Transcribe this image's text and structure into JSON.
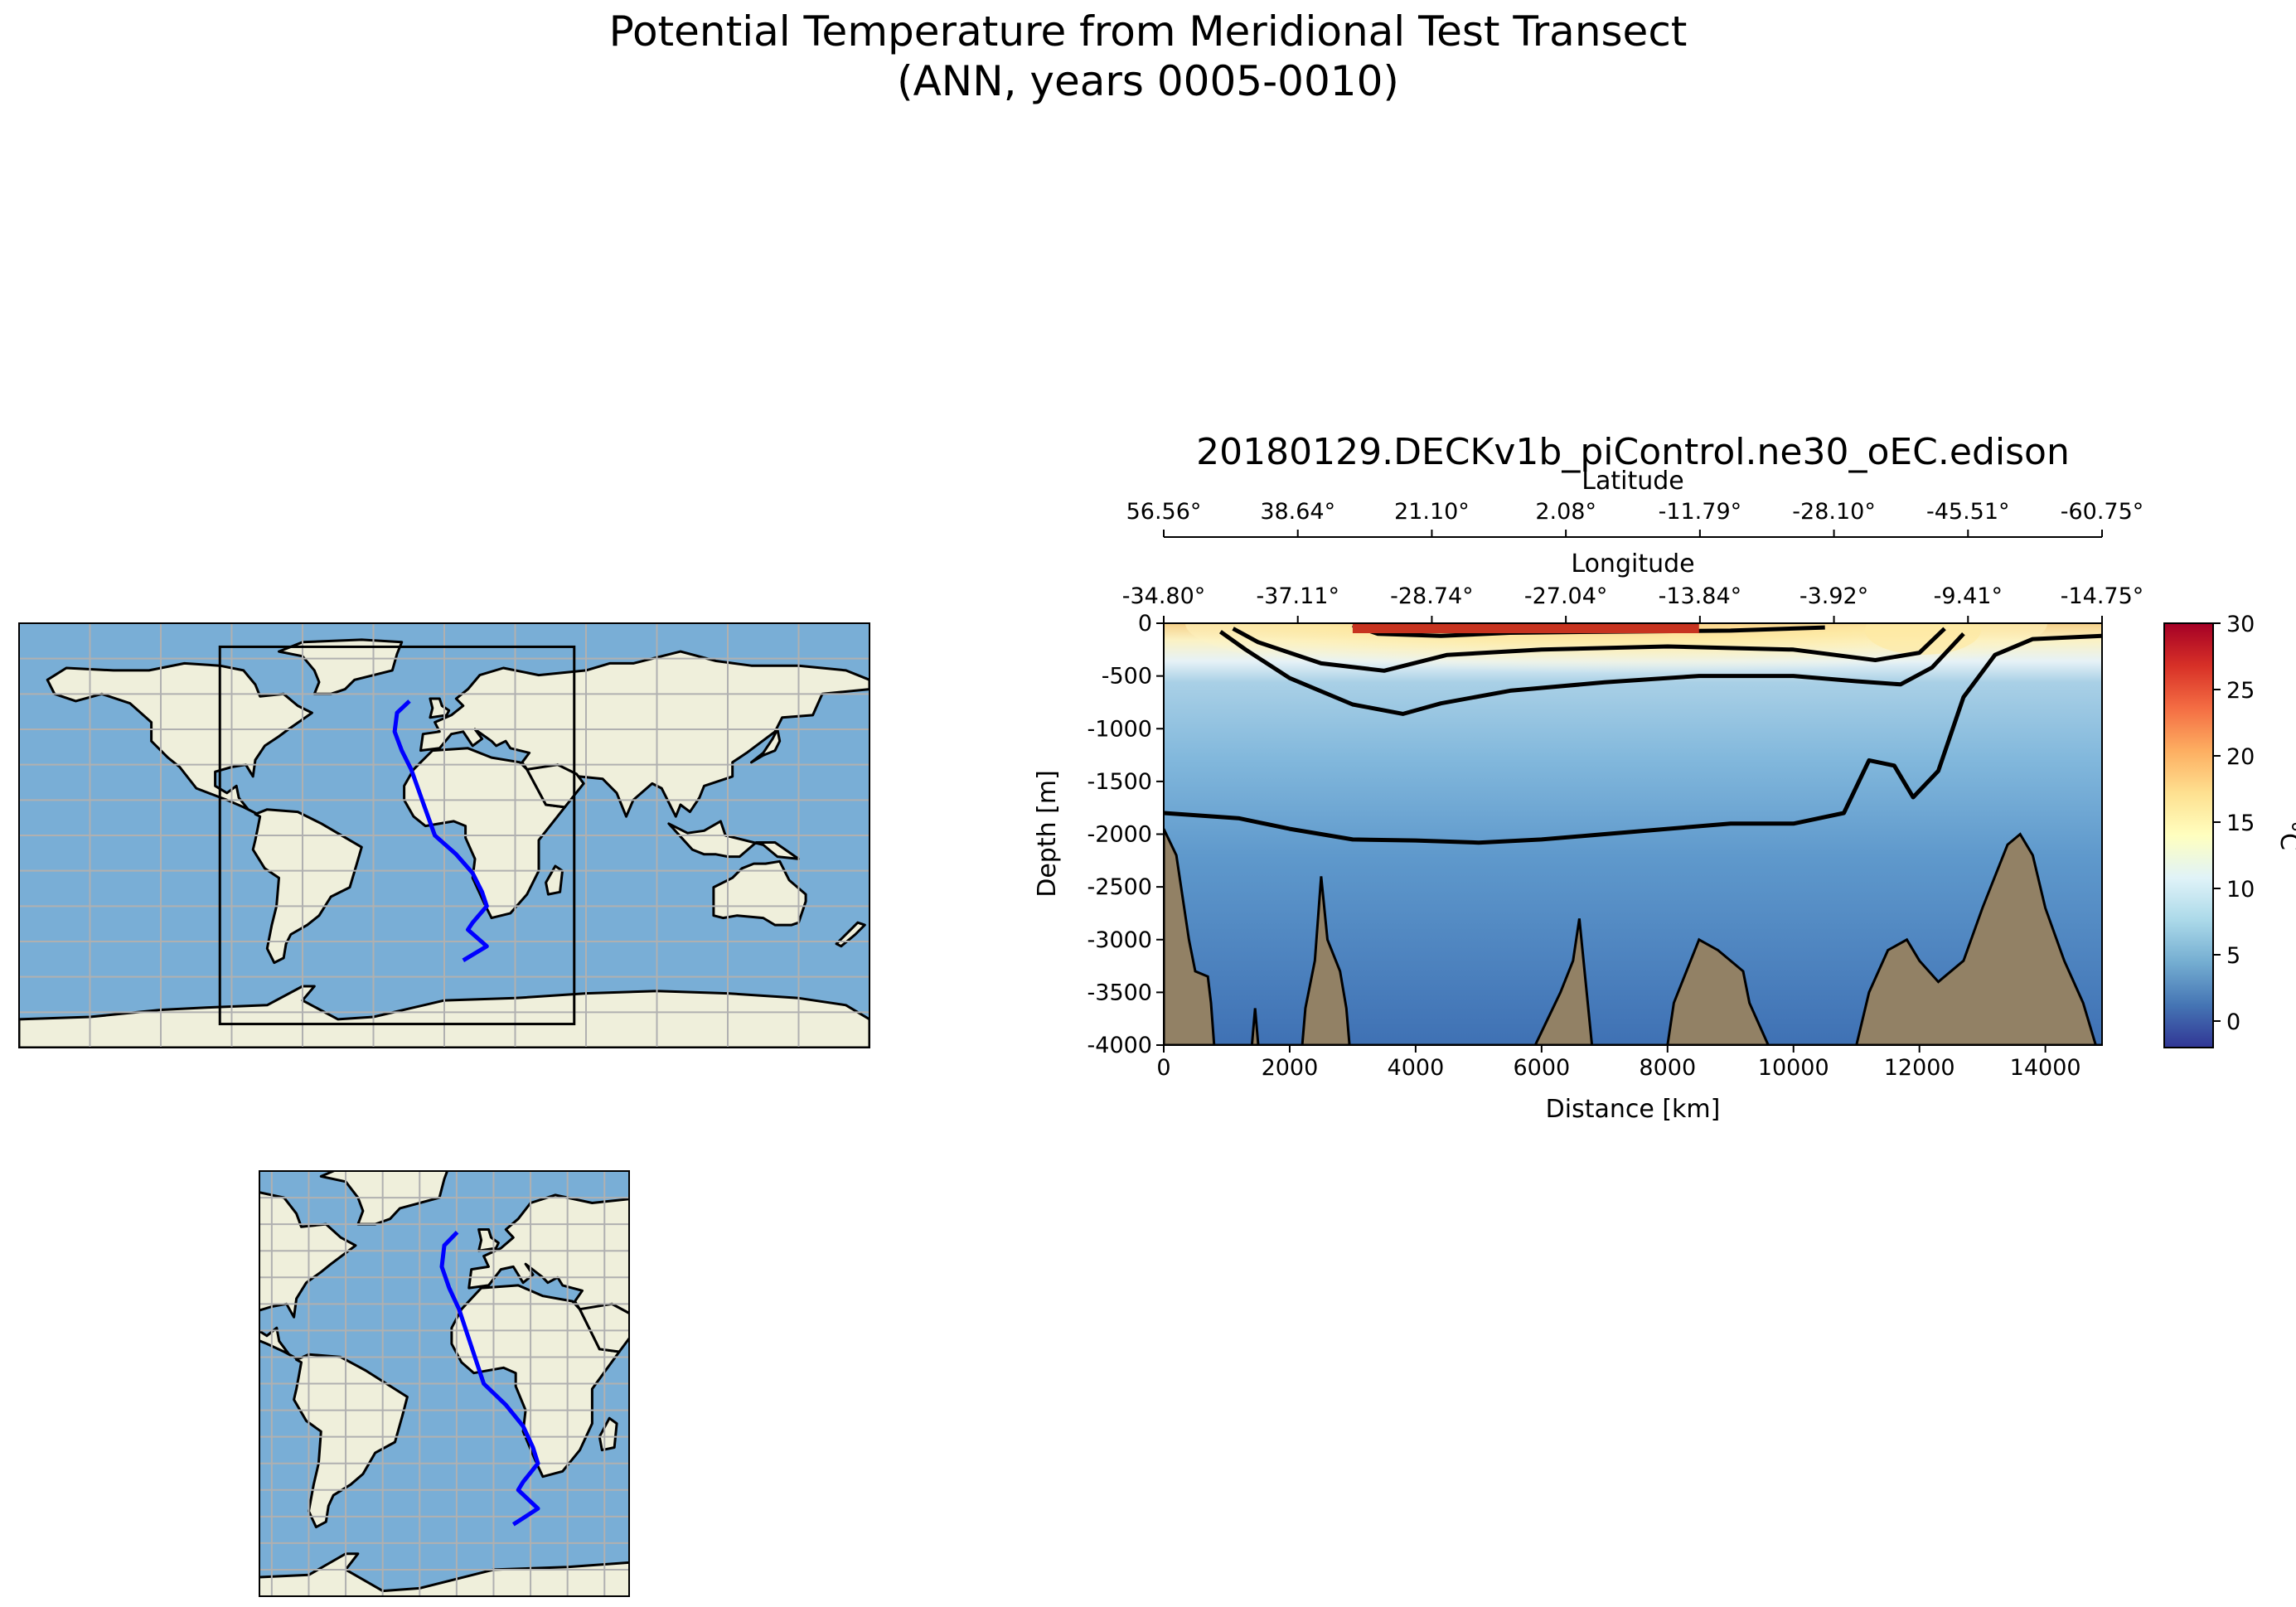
{
  "figure": {
    "title_line1": "Potential Temperature from Meridional Test Transect",
    "title_line2": "(ANN, years 0005-0010)"
  },
  "chart_data": [
    {
      "type": "heatmap",
      "title": "20180129.DECKv1b_piControl.ne30_oEC.edison",
      "xlabel": "Distance [km]",
      "ylabel": "Depth [m]",
      "xlim": [
        0,
        14900
      ],
      "ylim": [
        -4000,
        0
      ],
      "x_ticks": [
        0,
        2000,
        4000,
        6000,
        8000,
        10000,
        12000,
        14000
      ],
      "y_ticks": [
        0,
        -500,
        -1000,
        -1500,
        -2000,
        -2500,
        -3000,
        -3500,
        -4000
      ],
      "top_axis_latitude": {
        "label": "Latitude",
        "ticks": [
          "56.56°",
          "38.64°",
          "21.10°",
          "2.08°",
          "-11.79°",
          "-28.10°",
          "-45.51°",
          "-60.75°"
        ]
      },
      "top_axis_longitude": {
        "label": "Longitude",
        "ticks": [
          "-34.80°",
          "-37.11°",
          "-28.74°",
          "-27.04°",
          "-13.84°",
          "-3.92°",
          "-9.41°",
          "-14.75°"
        ]
      },
      "colorbar": {
        "label": "°C",
        "range": [
          -2,
          30
        ],
        "ticks": [
          0,
          5,
          10,
          15,
          20,
          25,
          30
        ],
        "colormap": "RdYlBu_r"
      },
      "contours": [
        {
          "level": "deep",
          "points": [
            [
              0,
              -1800
            ],
            [
              1200,
              -1850
            ],
            [
              2000,
              -1950
            ],
            [
              3000,
              -2050
            ],
            [
              4000,
              -2060
            ],
            [
              5000,
              -2080
            ],
            [
              6000,
              -2050
            ],
            [
              7000,
              -2000
            ],
            [
              8000,
              -1950
            ],
            [
              9000,
              -1900
            ],
            [
              10000,
              -1900
            ],
            [
              10800,
              -1800
            ],
            [
              11200,
              -1300
            ],
            [
              11600,
              -1350
            ],
            [
              11900,
              -1650
            ],
            [
              12300,
              -1400
            ],
            [
              12700,
              -700
            ],
            [
              13200,
              -300
            ],
            [
              13800,
              -150
            ],
            [
              14900,
              -120
            ]
          ]
        },
        {
          "level": "mid",
          "points": [
            [
              900,
              -80
            ],
            [
              1300,
              -250
            ],
            [
              2000,
              -520
            ],
            [
              3000,
              -770
            ],
            [
              3800,
              -860
            ],
            [
              4400,
              -760
            ],
            [
              5500,
              -640
            ],
            [
              7000,
              -560
            ],
            [
              8500,
              -500
            ],
            [
              10000,
              -500
            ],
            [
              11000,
              -550
            ],
            [
              11700,
              -580
            ],
            [
              12200,
              -420
            ],
            [
              12700,
              -100
            ]
          ]
        },
        {
          "level": "upper",
          "points": [
            [
              1100,
              -50
            ],
            [
              1500,
              -180
            ],
            [
              2500,
              -380
            ],
            [
              3500,
              -450
            ],
            [
              4500,
              -300
            ],
            [
              6000,
              -250
            ],
            [
              8000,
              -220
            ],
            [
              10000,
              -250
            ],
            [
              11300,
              -350
            ],
            [
              12000,
              -280
            ],
            [
              12400,
              -50
            ]
          ]
        },
        {
          "level": "surface",
          "points": [
            [
              3000,
              -20
            ],
            [
              3400,
              -100
            ],
            [
              4400,
              -120
            ],
            [
              5500,
              -90
            ],
            [
              7000,
              -80
            ],
            [
              9000,
              -70
            ],
            [
              10500,
              -40
            ]
          ]
        }
      ],
      "bathymetry": [
        [
          0,
          -1950
        ],
        [
          200,
          -2200
        ],
        [
          400,
          -3000
        ],
        [
          500,
          -3300
        ],
        [
          700,
          -3350
        ],
        [
          750,
          -3600
        ],
        [
          800,
          -4000
        ],
        [
          1400,
          -4000
        ],
        [
          1450,
          -3650
        ],
        [
          1500,
          -4000
        ],
        [
          2200,
          -4000
        ],
        [
          2250,
          -3650
        ],
        [
          2400,
          -3200
        ],
        [
          2500,
          -2400
        ],
        [
          2600,
          -3000
        ],
        [
          2800,
          -3300
        ],
        [
          2900,
          -3650
        ],
        [
          2950,
          -4000
        ],
        [
          5900,
          -4000
        ],
        [
          6100,
          -3750
        ],
        [
          6300,
          -3500
        ],
        [
          6500,
          -3200
        ],
        [
          6600,
          -2800
        ],
        [
          6700,
          -3400
        ],
        [
          6800,
          -4000
        ],
        [
          8000,
          -4000
        ],
        [
          8100,
          -3600
        ],
        [
          8300,
          -3300
        ],
        [
          8500,
          -3000
        ],
        [
          8800,
          -3100
        ],
        [
          9200,
          -3300
        ],
        [
          9300,
          -3600
        ],
        [
          9600,
          -4000
        ],
        [
          11000,
          -4000
        ],
        [
          11200,
          -3500
        ],
        [
          11500,
          -3100
        ],
        [
          11800,
          -3000
        ],
        [
          12000,
          -3200
        ],
        [
          12300,
          -3400
        ],
        [
          12700,
          -3200
        ],
        [
          13000,
          -2700
        ],
        [
          13200,
          -2400
        ],
        [
          13400,
          -2100
        ],
        [
          13600,
          -2000
        ],
        [
          13800,
          -2200
        ],
        [
          14000,
          -2700
        ],
        [
          14300,
          -3200
        ],
        [
          14600,
          -3600
        ],
        [
          14800,
          -4000
        ]
      ]
    }
  ],
  "maps": {
    "global_extent": [
      -180,
      180,
      -90,
      90
    ],
    "regional_extent": [
      -95,
      55,
      -80,
      80
    ],
    "transect_lon_lat": [
      [
        -14.75,
        57
      ],
      [
        -20,
        52
      ],
      [
        -21,
        44
      ],
      [
        -18,
        36
      ],
      [
        -14,
        28
      ],
      [
        -9,
        14
      ],
      [
        -4,
        0
      ],
      [
        5,
        -8
      ],
      [
        12,
        -16
      ],
      [
        16,
        -24
      ],
      [
        18,
        -30
      ],
      [
        12,
        -37
      ],
      [
        10,
        -40
      ],
      [
        18,
        -47
      ],
      [
        8,
        -53
      ]
    ]
  }
}
